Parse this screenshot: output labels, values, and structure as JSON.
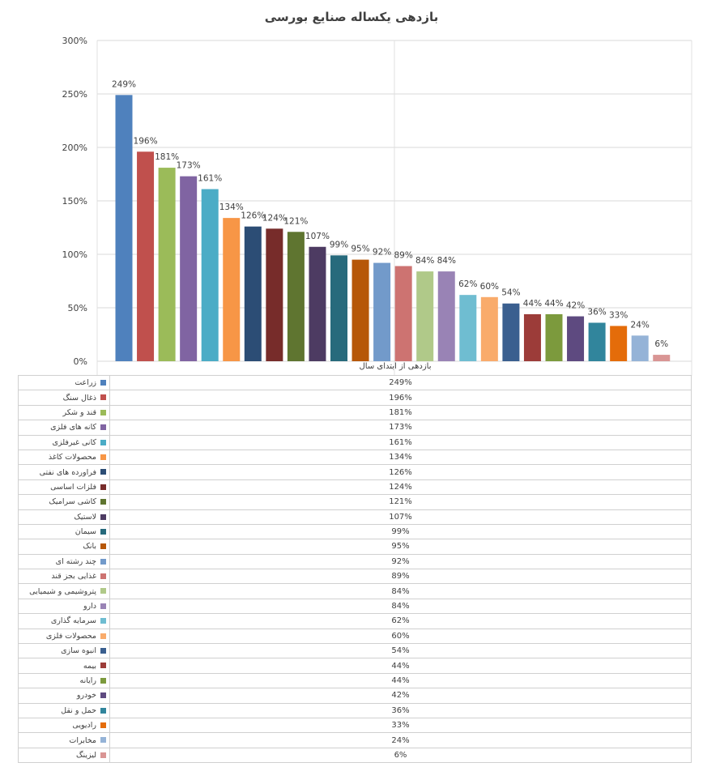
{
  "chart_data": {
    "type": "bar",
    "title": "بازدهی یکساله صنایع بورسی",
    "series_name": "بازدهی از ابتدای سال",
    "y_ticks": [
      "0%",
      "50%",
      "100%",
      "150%",
      "200%",
      "250%",
      "300%"
    ],
    "ylim": [
      0,
      300
    ],
    "grid": true,
    "legend": "data-table-below",
    "categories": [
      "زراعت",
      "ذغال سنگ",
      "قند و شکر",
      "کانه های فلزی",
      "کانی غیرفلزی",
      "محصولات کاغذ",
      "فراورده های نفتی",
      "فلزات اساسی",
      "کاشی سرامیک",
      "لاستیک",
      "سیمان",
      "بانک",
      "چند رشته ای",
      "غذایی بجز قند",
      "پتروشیمی و شیمیایی",
      "دارو",
      "سرمایه گذاری",
      "محصولات فلزی",
      "انبوه سازی",
      "بیمه",
      "رایانه",
      "خودرو",
      "حمل و نقل",
      "رادیویی",
      "مخابرات",
      "لیزینگ"
    ],
    "values": [
      249,
      196,
      181,
      173,
      161,
      134,
      126,
      124,
      121,
      107,
      99,
      95,
      92,
      89,
      84,
      84,
      62,
      60,
      54,
      44,
      44,
      42,
      36,
      33,
      24,
      6
    ],
    "value_labels": [
      "249%",
      "196%",
      "181%",
      "173%",
      "161%",
      "134%",
      "126%",
      "124%",
      "121%",
      "107%",
      "99%",
      "95%",
      "92%",
      "89%",
      "84%",
      "84%",
      "62%",
      "60%",
      "54%",
      "44%",
      "44%",
      "42%",
      "36%",
      "33%",
      "24%",
      "6%"
    ],
    "colors": [
      "#4f81bd",
      "#c0504d",
      "#9bbb59",
      "#8064a2",
      "#4bacc6",
      "#f79646",
      "#2c4d75",
      "#772c2a",
      "#5f7530",
      "#4d3b62",
      "#276a7c",
      "#b65708",
      "#729aca",
      "#cd7371",
      "#b0c989",
      "#9983b5",
      "#6fbdd1",
      "#f9ab6b",
      "#3a5f8f",
      "#9c3c39",
      "#7c9a3d",
      "#5e4a80",
      "#31859c",
      "#e46c0a",
      "#95b3d7",
      "#d99594"
    ]
  }
}
